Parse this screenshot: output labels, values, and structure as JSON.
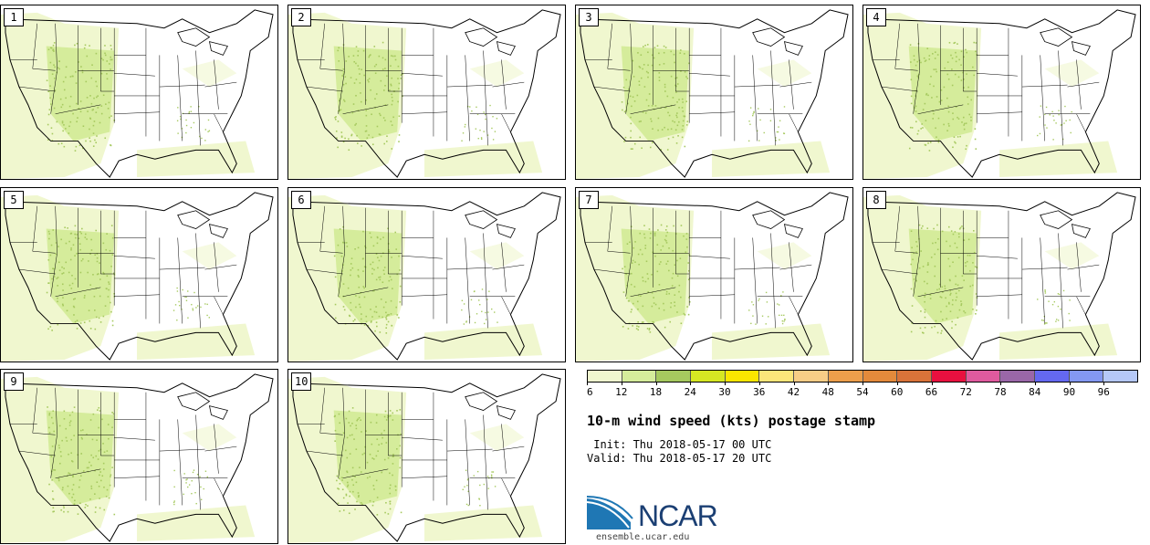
{
  "panels": [
    {
      "label": "1"
    },
    {
      "label": "2"
    },
    {
      "label": "3"
    },
    {
      "label": "4"
    },
    {
      "label": "5"
    },
    {
      "label": "6"
    },
    {
      "label": "7"
    },
    {
      "label": "8"
    },
    {
      "label": "9"
    },
    {
      "label": "10"
    }
  ],
  "colorbar": {
    "colors": [
      "#f0f7cf",
      "#d5ec9b",
      "#a6c95f",
      "#d6e723",
      "#fae600",
      "#fbe67a",
      "#f7cd86",
      "#ec9e4b",
      "#e38a3b",
      "#d97339",
      "#e8103f",
      "#e05a9e",
      "#9a67a8",
      "#6468f0",
      "#8398f2",
      "#b5c8f7"
    ],
    "ticks": [
      "6",
      "12",
      "18",
      "24",
      "30",
      "36",
      "42",
      "48",
      "54",
      "60",
      "66",
      "72",
      "78",
      "84",
      "90",
      "96"
    ]
  },
  "title": "10-m wind speed (kts) postage stamp",
  "init": " Init: Thu 2018-05-17 00 UTC",
  "valid": "Valid: Thu 2018-05-17 20 UTC",
  "logo": {
    "text": "NCAR",
    "site": "ensemble.ucar.edu",
    "color": "#1b3f73"
  }
}
